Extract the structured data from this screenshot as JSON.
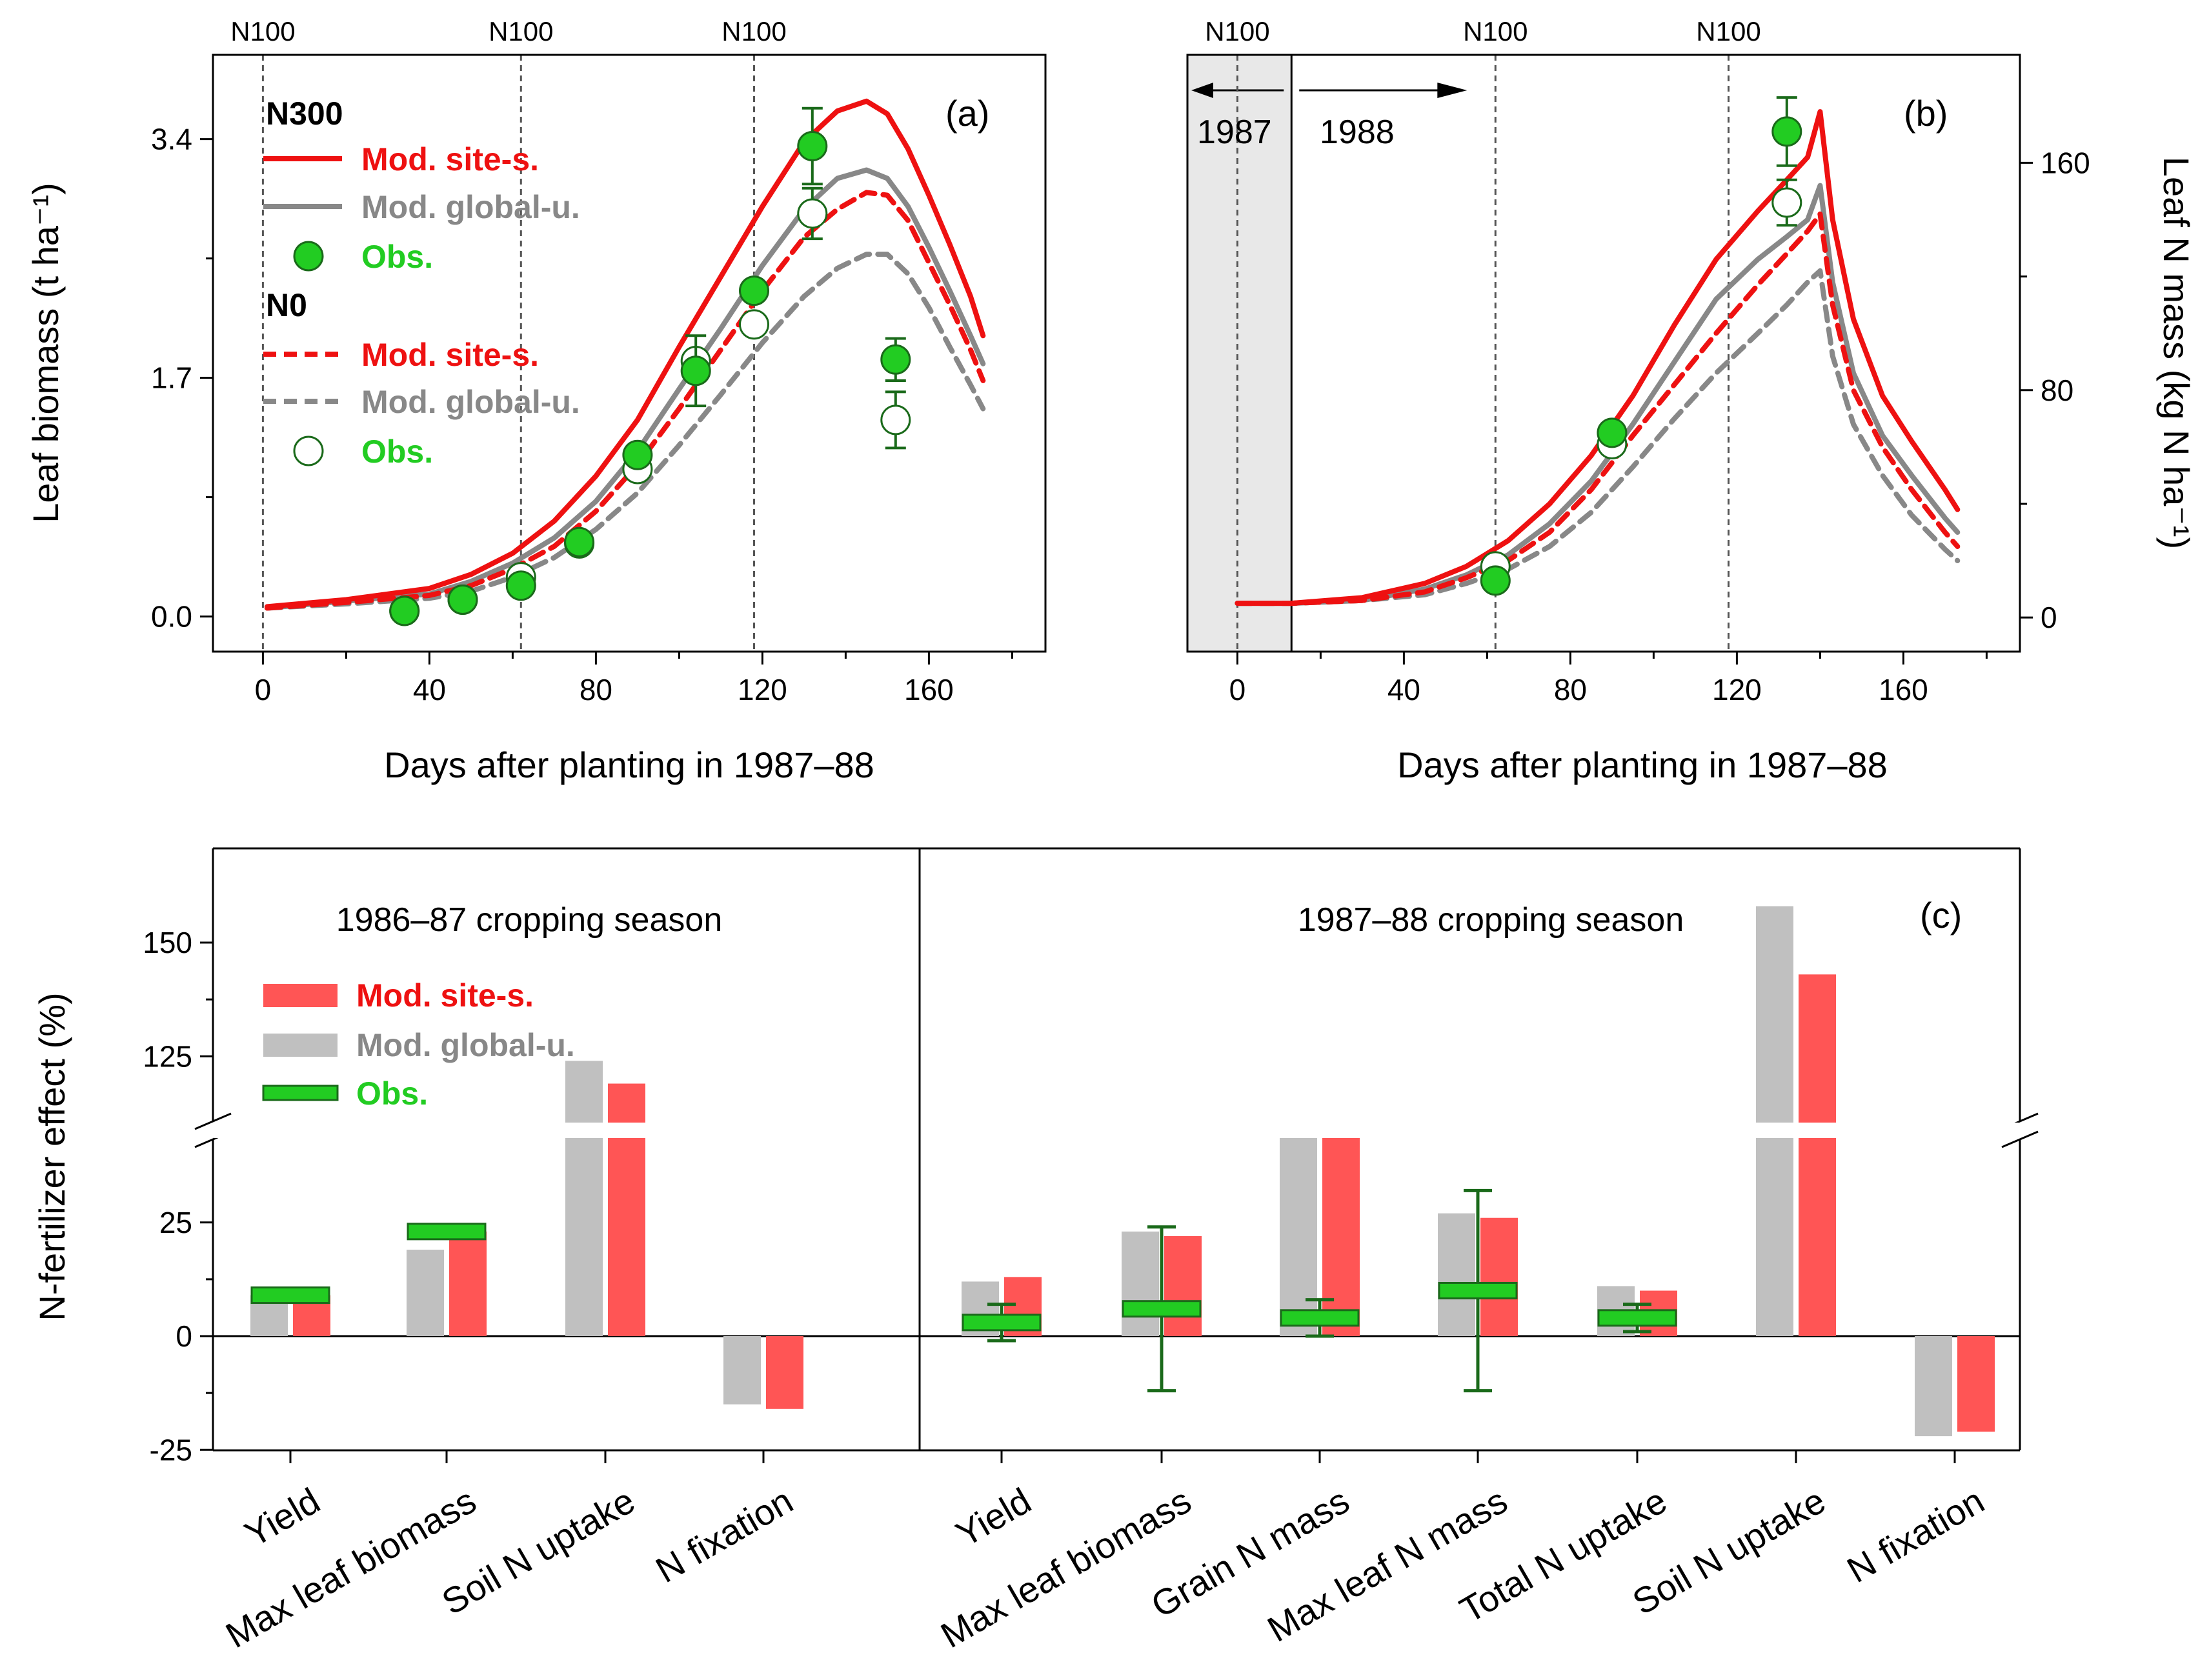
{
  "colors": {
    "site": "#ee1111",
    "global": "#888888",
    "obs": "#22cc22",
    "obs_edge": "#1a6a1a",
    "bar_site": "#ff5555",
    "bar_global": "#c0c0c0",
    "shade": "#e8e8e8"
  },
  "chart_data": [
    {
      "id": "a",
      "type": "line",
      "panel_label": "(a)",
      "xlabel": "Days after planting in 1987–88",
      "ylabel": "Leaf biomass (t ha⁻¹)",
      "xlim": [
        -12,
        188
      ],
      "ylim": [
        -0.25,
        4.0
      ],
      "xticks": [
        "0",
        "40",
        "80",
        "120",
        "160"
      ],
      "xtick_values": [
        0,
        40,
        80,
        120,
        160
      ],
      "yticks": [
        "0.0",
        "1.7",
        "3.4"
      ],
      "ytick_values": [
        0.0,
        1.7,
        3.4
      ],
      "fert_lines": [
        0,
        62,
        118
      ],
      "fert_label": "N100",
      "legend": {
        "group1": "N300",
        "group2": "N0",
        "site": "Mod. site-s.",
        "global": "Mod. global-u.",
        "obs": "Obs."
      },
      "series": [
        {
          "name": "N300 Mod. site-s.",
          "style": "solid",
          "color": "site",
          "x": [
            1,
            20,
            40,
            50,
            60,
            70,
            80,
            90,
            100,
            110,
            120,
            130,
            138,
            145,
            150,
            155,
            160,
            165,
            170,
            173
          ],
          "y": [
            0.07,
            0.12,
            0.2,
            0.3,
            0.45,
            0.68,
            1.0,
            1.4,
            1.92,
            2.42,
            2.92,
            3.38,
            3.6,
            3.67,
            3.58,
            3.33,
            3.0,
            2.65,
            2.28,
            2.0
          ]
        },
        {
          "name": "N300 Mod. global-u.",
          "style": "solid",
          "color": "global",
          "x": [
            1,
            20,
            40,
            50,
            60,
            70,
            80,
            90,
            100,
            110,
            120,
            130,
            138,
            145,
            150,
            155,
            160,
            165,
            170,
            173
          ],
          "y": [
            0.06,
            0.11,
            0.16,
            0.25,
            0.38,
            0.56,
            0.82,
            1.18,
            1.62,
            2.05,
            2.5,
            2.9,
            3.12,
            3.18,
            3.12,
            2.92,
            2.63,
            2.32,
            2.0,
            1.8
          ]
        },
        {
          "name": "N0 Mod. site-s.",
          "style": "dashed",
          "color": "site",
          "x": [
            1,
            20,
            40,
            50,
            60,
            70,
            80,
            90,
            100,
            110,
            120,
            130,
            138,
            145,
            150,
            155,
            160,
            165,
            170,
            173
          ],
          "y": [
            0.06,
            0.1,
            0.15,
            0.22,
            0.34,
            0.5,
            0.75,
            1.08,
            1.48,
            1.9,
            2.32,
            2.7,
            2.9,
            3.02,
            3.0,
            2.82,
            2.52,
            2.22,
            1.9,
            1.68
          ]
        },
        {
          "name": "N0 Mod. global-u.",
          "style": "dashed",
          "color": "global",
          "x": [
            1,
            20,
            40,
            50,
            60,
            70,
            80,
            90,
            100,
            110,
            120,
            130,
            138,
            145,
            150,
            155,
            160,
            165,
            170,
            173
          ],
          "y": [
            0.06,
            0.09,
            0.13,
            0.18,
            0.28,
            0.42,
            0.62,
            0.88,
            1.22,
            1.58,
            1.95,
            2.28,
            2.48,
            2.58,
            2.58,
            2.44,
            2.2,
            1.92,
            1.65,
            1.48
          ]
        }
      ],
      "obs": [
        {
          "name": "N300 Obs.",
          "filled": true,
          "x": [
            34,
            48,
            62,
            76,
            90,
            104,
            118,
            132,
            152
          ],
          "y": [
            0.04,
            0.12,
            0.22,
            0.53,
            1.15,
            1.75,
            2.32,
            3.35,
            1.83
          ],
          "err": [
            0,
            0,
            0,
            0,
            0,
            0.25,
            0,
            0.27,
            0.15
          ]
        },
        {
          "name": "N0 Obs.",
          "filled": false,
          "x": [
            34,
            48,
            62,
            76,
            90,
            104,
            118,
            132,
            152
          ],
          "y": [
            0.04,
            0.12,
            0.28,
            0.52,
            1.05,
            1.82,
            2.08,
            2.87,
            1.4
          ],
          "err": [
            0,
            0,
            0,
            0,
            0,
            0,
            0,
            0.18,
            0.2
          ]
        }
      ]
    },
    {
      "id": "b",
      "type": "line",
      "panel_label": "(b)",
      "xlabel": "Days after planting in 1987–88",
      "ylabel": "Leaf N mass (kg N ha⁻¹)",
      "xlim": [
        -12,
        188
      ],
      "ylim": [
        -12,
        198
      ],
      "xticks": [
        "0",
        "40",
        "80",
        "120",
        "160"
      ],
      "xtick_values": [
        0,
        40,
        80,
        120,
        160
      ],
      "yticks": [
        "0",
        "80",
        "160"
      ],
      "ytick_values": [
        0,
        80,
        160
      ],
      "fert_lines": [
        0,
        62,
        118
      ],
      "fert_label": "N100",
      "shaded_until": 13,
      "year_labels": [
        "1987",
        "1988"
      ],
      "series": [
        {
          "name": "N300 Mod. site-s.",
          "style": "solid",
          "color": "site",
          "x": [
            0,
            13,
            30,
            45,
            55,
            65,
            75,
            85,
            95,
            105,
            115,
            125,
            132,
            137,
            140,
            143,
            148,
            155,
            162,
            170,
            173
          ],
          "y": [
            5,
            5,
            7,
            12,
            18,
            27,
            40,
            57,
            78,
            103,
            126,
            143,
            154,
            162,
            178,
            140,
            105,
            78,
            62,
            45,
            38
          ]
        },
        {
          "name": "N300 Mod. global-u.",
          "style": "solid",
          "color": "global",
          "x": [
            0,
            13,
            30,
            45,
            55,
            65,
            75,
            85,
            95,
            105,
            115,
            125,
            132,
            137,
            140,
            143,
            148,
            155,
            162,
            170,
            173
          ],
          "y": [
            5,
            5,
            6,
            10,
            15,
            22,
            33,
            48,
            68,
            90,
            112,
            126,
            134,
            140,
            152,
            118,
            86,
            64,
            50,
            35,
            30
          ]
        },
        {
          "name": "N0 Mod. site-s.",
          "style": "dashed",
          "color": "site",
          "x": [
            0,
            13,
            30,
            45,
            55,
            65,
            75,
            85,
            95,
            105,
            115,
            125,
            132,
            137,
            140,
            143,
            148,
            155,
            162,
            170,
            173
          ],
          "y": [
            5,
            5,
            6,
            9,
            14,
            20,
            30,
            45,
            64,
            82,
            100,
            117,
            128,
            136,
            142,
            110,
            80,
            60,
            45,
            30,
            25
          ]
        },
        {
          "name": "N0 Mod. global-u.",
          "style": "dashed",
          "color": "global",
          "x": [
            0,
            13,
            30,
            45,
            55,
            65,
            75,
            85,
            95,
            105,
            115,
            125,
            132,
            137,
            140,
            143,
            148,
            155,
            162,
            170,
            173
          ],
          "y": [
            5,
            5,
            6,
            8,
            12,
            17,
            25,
            37,
            53,
            70,
            86,
            100,
            110,
            118,
            122,
            92,
            68,
            50,
            36,
            24,
            20
          ]
        }
      ],
      "obs": [
        {
          "name": "N300 Obs.",
          "filled": true,
          "x": [
            62,
            90,
            132
          ],
          "y": [
            13,
            65,
            171
          ],
          "err": [
            0,
            0,
            12
          ]
        },
        {
          "name": "N0 Obs.",
          "filled": false,
          "x": [
            62,
            90,
            132
          ],
          "y": [
            18,
            61,
            146
          ],
          "err": [
            0,
            0,
            8
          ]
        }
      ]
    },
    {
      "id": "c",
      "type": "bar",
      "panel_label": "(c)",
      "ylabel": "N-fertilizer effect (%)",
      "yticks": [
        "-25",
        "0",
        "25",
        "125",
        "150"
      ],
      "ytick_values": [
        -25,
        0,
        25,
        125,
        150
      ],
      "axis_break": {
        "lower_max": 45,
        "upper_min": 112,
        "upper_max": 167
      },
      "legend": {
        "site": "Mod. site-s.",
        "global": "Mod. global-u.",
        "obs": "Obs."
      },
      "groups": [
        {
          "season": "1986–87 cropping season",
          "categories": [
            "Yield",
            "Max leaf biomass",
            "Soil N uptake",
            "N fixation"
          ],
          "global": [
            9,
            19,
            124,
            -15
          ],
          "site": [
            9,
            23,
            119,
            -16
          ],
          "obs": [
            9,
            23,
            null,
            null
          ],
          "obs_err": [
            0,
            0,
            null,
            null
          ]
        },
        {
          "season": "1987–88 cropping season",
          "categories": [
            "Yield",
            "Max leaf biomass",
            "Grain N mass",
            "Max leaf N mass",
            "Total N uptake",
            "Soil N uptake",
            "N fixation"
          ],
          "global": [
            12,
            23,
            44,
            27,
            11,
            158,
            -22
          ],
          "site": [
            13,
            22,
            44,
            26,
            10,
            143,
            -21
          ],
          "obs": [
            3,
            6,
            4,
            10,
            4,
            null,
            null
          ],
          "obs_err": [
            4,
            18,
            4,
            22,
            3,
            null,
            null
          ]
        }
      ]
    }
  ]
}
